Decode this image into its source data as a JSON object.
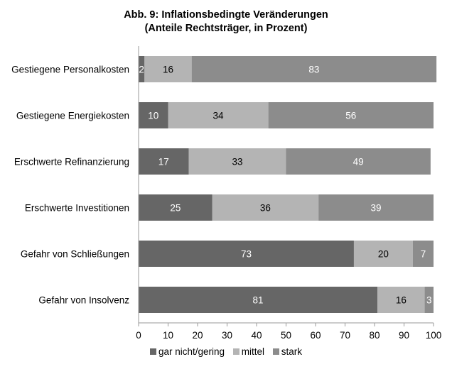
{
  "chart_data": {
    "type": "bar",
    "orientation": "horizontal",
    "stacked": true,
    "title": "Abb. 9: Inflationsbedingte Veränderungen",
    "subtitle": "(Anteile Rechtsträger, in Prozent)",
    "categories": [
      "Gestiegene Personalkosten",
      "Gestiegene Energiekosten",
      "Erschwerte Refinanzierung",
      "Erschwerte Investitionen",
      "Gefahr von Schließungen",
      "Gefahr von Insolvenz"
    ],
    "series": [
      {
        "name": "gar nicht/gering",
        "color": "#666666",
        "label_color": "#ffffff",
        "values": [
          2,
          10,
          17,
          25,
          73,
          81
        ]
      },
      {
        "name": "mittel",
        "color": "#b4b4b4",
        "label_color": "#000000",
        "values": [
          16,
          34,
          33,
          36,
          20,
          16
        ]
      },
      {
        "name": "stark",
        "color": "#8c8c8c",
        "label_color": "#ffffff",
        "values": [
          83,
          56,
          49,
          39,
          7,
          3
        ]
      }
    ],
    "xlim": [
      0,
      100
    ],
    "xticks": [
      0,
      10,
      20,
      30,
      40,
      50,
      60,
      70,
      80,
      90,
      100
    ],
    "grid": false,
    "legend_position": "bottom"
  }
}
